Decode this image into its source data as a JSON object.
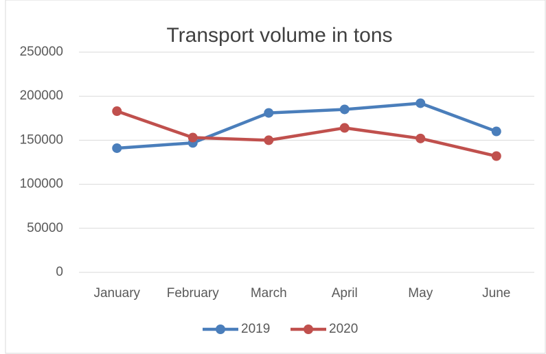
{
  "chart_data": {
    "type": "line",
    "title": "Transport volume in tons",
    "categories": [
      "January",
      "February",
      "March",
      "April",
      "May",
      "June"
    ],
    "series": [
      {
        "name": "2019",
        "color": "#4a7ebb",
        "values": [
          141000,
          147000,
          181000,
          185000,
          192000,
          160000
        ]
      },
      {
        "name": "2020",
        "color": "#c0504d",
        "values": [
          183000,
          153000,
          150000,
          164000,
          152000,
          132000
        ]
      }
    ],
    "ylim": [
      0,
      250000
    ],
    "yticks": [
      0,
      50000,
      100000,
      150000,
      200000,
      250000
    ],
    "grid": true,
    "legend": "bottom"
  }
}
